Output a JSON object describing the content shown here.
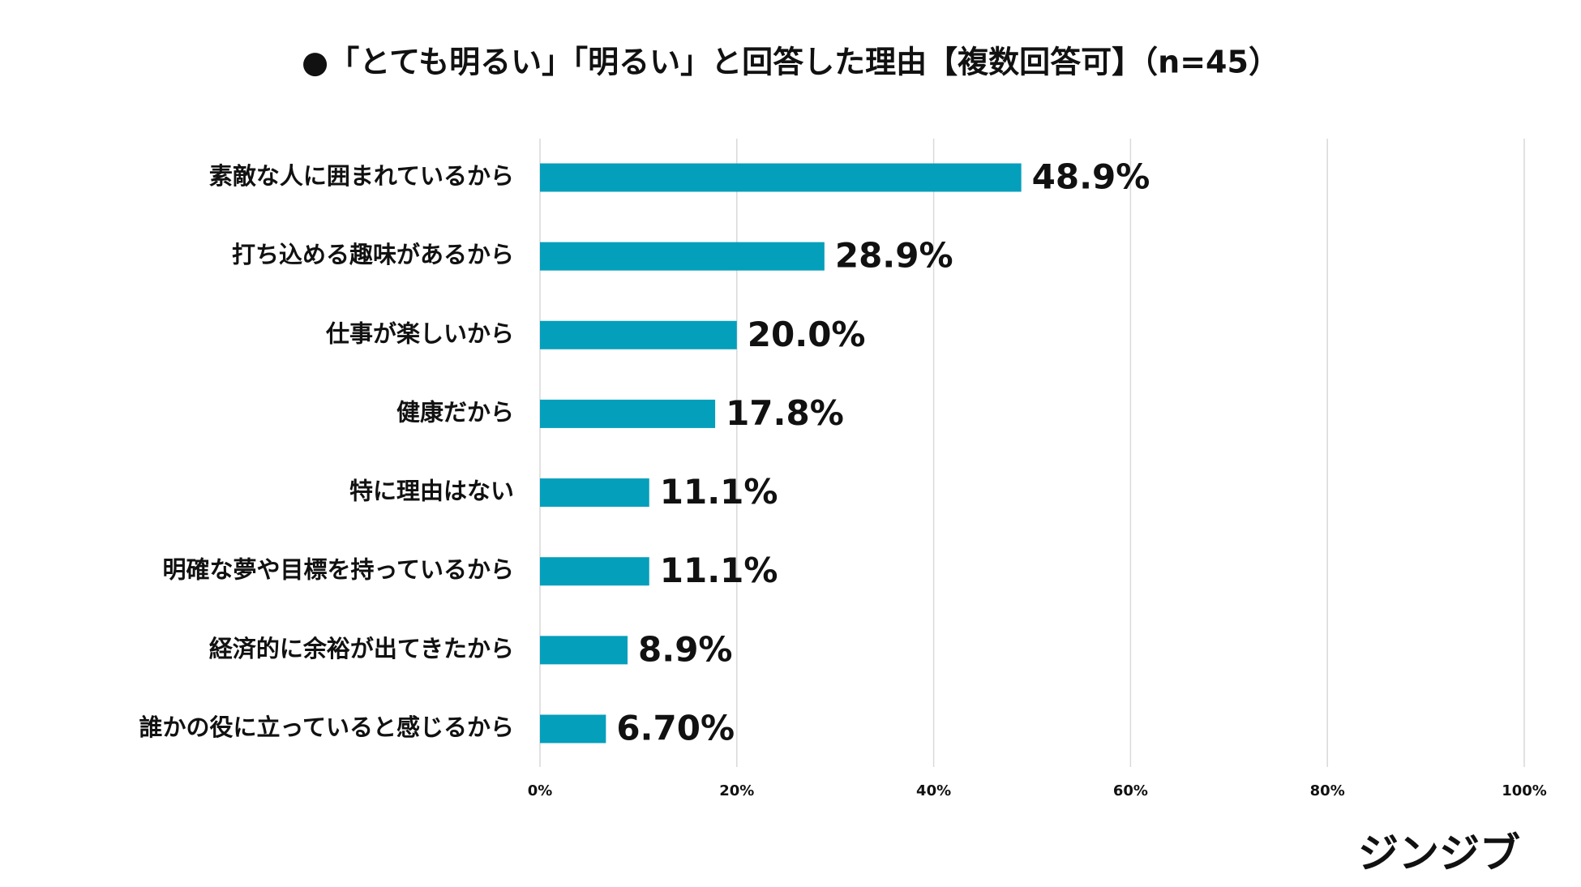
{
  "chart_data": {
    "type": "hbar",
    "title": "●「とても明るい」「明るい」と回答した理由【複数回答可】（n=45）",
    "categories": [
      "素敵な人に囲まれているから",
      "打ち込める趣味があるから",
      "仕事が楽しいから",
      "健康だから",
      "特に理由はない",
      "明確な夢や目標を持っているから",
      "経済的に余裕が出てきたから",
      "誰かの役に立っていると感じるから"
    ],
    "values": [
      48.9,
      28.9,
      20.0,
      17.8,
      11.1,
      11.1,
      8.9,
      6.7
    ],
    "value_labels": [
      "48.9%",
      "28.9%",
      "20.0%",
      "17.8%",
      "11.1%",
      "11.1%",
      "8.9%",
      "6.70%"
    ],
    "color": "#049fbb",
    "xlim": [
      0,
      100
    ],
    "xticks": [
      {
        "value": 0,
        "label": "0%"
      },
      {
        "value": 20,
        "label": "20%"
      },
      {
        "value": 40,
        "label": "40%"
      },
      {
        "value": 60,
        "label": "60%"
      },
      {
        "value": 80,
        "label": "80%"
      },
      {
        "value": 100,
        "label": "100%"
      }
    ],
    "grid": true
  },
  "logo": "ジンジブ"
}
